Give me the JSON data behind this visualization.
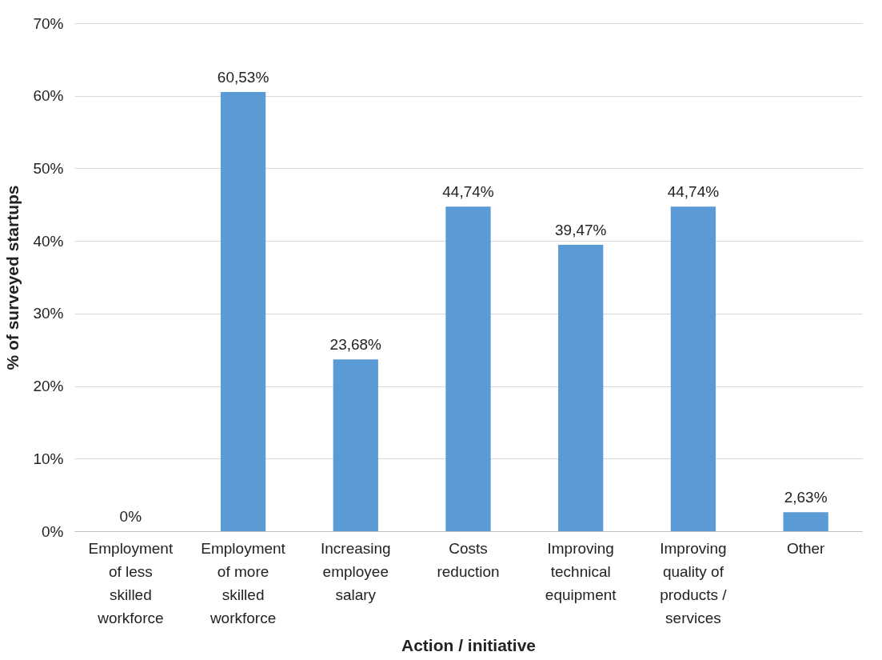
{
  "chart_data": {
    "type": "bar",
    "xlabel": "Action / initiative",
    "ylabel": "% of surveyed startups",
    "categories": [
      "Employment of less skilled workforce",
      "Employment of more skilled workforce",
      "Increasing employee salary",
      "Costs reduction",
      "Improving technical equipment",
      "Improving quality of products / services",
      "Other"
    ],
    "values": [
      0,
      60.53,
      23.68,
      44.74,
      39.47,
      44.74,
      2.63
    ],
    "value_labels": [
      "0%",
      "60,53%",
      "23,68%",
      "44,74%",
      "39,47%",
      "44,74%",
      "2,63%"
    ],
    "color": "#5b9bd5",
    "ylim": [
      0,
      70
    ],
    "yticks": [
      {
        "value": 0,
        "label": "0%"
      },
      {
        "value": 10,
        "label": "10%"
      },
      {
        "value": 20,
        "label": "20%"
      },
      {
        "value": 30,
        "label": "30%"
      },
      {
        "value": 40,
        "label": "40%"
      },
      {
        "value": 50,
        "label": "50%"
      },
      {
        "value": 60,
        "label": "60%"
      },
      {
        "value": 70,
        "label": "70%"
      }
    ],
    "grid": true
  }
}
